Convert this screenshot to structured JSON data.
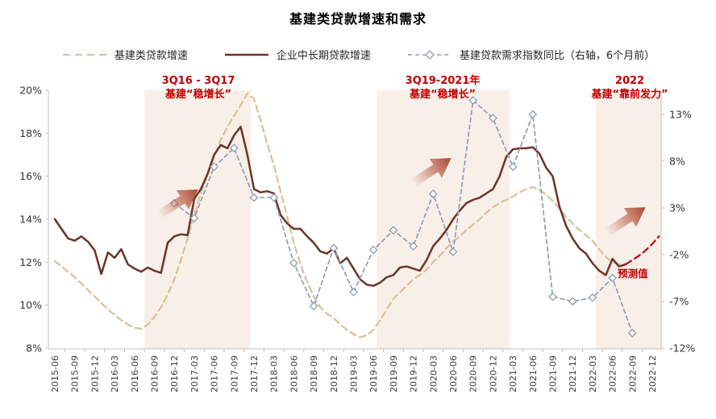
{
  "title": "基建类贷款增速和需求",
  "legend": [
    {
      "label": "基建类贷款增速",
      "style": "dashed",
      "color": "#ddbe94"
    },
    {
      "label": "企业中长期贷款增速",
      "style": "solid",
      "color": "#6d3425"
    },
    {
      "label": "基建贷款需求指数同比（右轴，6个月前）",
      "style": "dashed-diamond",
      "color": "#8e9cb6"
    }
  ],
  "annotations": [
    {
      "line1": "3Q16 - 3Q17",
      "line2": "基建“稳增长”"
    },
    {
      "line1": "3Q19-2021年",
      "line2": "基建“稳增长”"
    },
    {
      "line1": "2022",
      "line2": "基建“靠前发力”"
    }
  ],
  "forecast_label": "预测值",
  "colors": {
    "infra_loan": "#ddbe94",
    "corporate_loan": "#6d3425",
    "demand_index": "#8e9cb6",
    "forecast": "#c00000",
    "annotation": "#c00000",
    "band": "#f9efe9",
    "axis": "#c0c0c0",
    "tick_text": "#333333"
  },
  "chart_data": {
    "type": "line",
    "left_axis": {
      "min": 8,
      "max": 20,
      "step": 2,
      "tick_labels": [
        "20%",
        "18%",
        "16%",
        "14%",
        "12%",
        "10%",
        "8%"
      ]
    },
    "right_axis": {
      "min": -12,
      "max": 13,
      "step": 5,
      "tick_labels": [
        "13%",
        "8%",
        "3%",
        "-2%",
        "-7%",
        "-12%"
      ]
    },
    "x_tick_labels": [
      "2015-06",
      "2015-09",
      "2015-12",
      "2016-03",
      "2016-06",
      "2016-09",
      "2016-12",
      "2017-03",
      "2017-06",
      "2017-09",
      "2017-12",
      "2018-03",
      "2018-06",
      "2018-09",
      "2018-12",
      "2019-03",
      "2019-06",
      "2019-09",
      "2019-12",
      "2020-03",
      "2020-06",
      "2020-09",
      "2020-12",
      "2021-03",
      "2021-06",
      "2021-09",
      "2021-12",
      "2022-03",
      "2022-06",
      "2022-09",
      "2022-12"
    ],
    "bands": [
      {
        "from": "2016-08",
        "to": "2017-11",
        "label": "3Q16-3Q17 基建稳增长"
      },
      {
        "from": "2019-07",
        "to": "2021-02",
        "label": "3Q19-2021 基建稳增长"
      },
      {
        "from": "2022-04",
        "to": "end",
        "label": "2022 基建靠前发力"
      }
    ],
    "series": [
      {
        "name": "基建类贷款增速",
        "axis": "left",
        "style": "dashed",
        "color": "#ddbe94",
        "start": "2015-06",
        "step_months": 1,
        "values": [
          12.05,
          11.8,
          11.55,
          11.3,
          11.0,
          10.7,
          10.4,
          10.1,
          9.8,
          9.55,
          9.3,
          9.1,
          8.95,
          8.9,
          9.1,
          9.45,
          9.9,
          10.5,
          11.2,
          12.1,
          13.1,
          14.2,
          15.2,
          16.1,
          16.9,
          17.7,
          18.3,
          18.8,
          19.3,
          19.85,
          19.6,
          18.6,
          17.5,
          16.5,
          15.3,
          14.1,
          12.9,
          11.9,
          11.1,
          10.4,
          9.9,
          9.6,
          9.4,
          9.1,
          8.85,
          8.65,
          8.5,
          8.6,
          8.85,
          9.3,
          9.8,
          10.3,
          10.6,
          10.9,
          11.2,
          11.4,
          11.65,
          12.0,
          12.3,
          12.65,
          12.95,
          13.2,
          13.5,
          13.75,
          14.0,
          14.3,
          14.55,
          14.75,
          14.9,
          15.05,
          15.25,
          15.4,
          15.5,
          15.35,
          15.15,
          14.85,
          14.5,
          14.1,
          13.8,
          13.5,
          13.25,
          13.0,
          12.6,
          12.25,
          12.0,
          11.9
        ]
      },
      {
        "name": "企业中长期贷款增速",
        "axis": "left",
        "style": "solid",
        "color": "#6d3425",
        "start": "2015-06",
        "step_months": 1,
        "values": [
          14.0,
          13.55,
          13.1,
          13.0,
          13.2,
          12.95,
          12.55,
          11.45,
          12.45,
          12.2,
          12.6,
          11.9,
          11.7,
          11.55,
          11.75,
          11.6,
          11.5,
          12.9,
          13.2,
          13.3,
          13.25,
          14.95,
          15.4,
          16.1,
          17.0,
          17.45,
          17.3,
          17.9,
          18.3,
          17.0,
          15.4,
          15.25,
          15.3,
          15.2,
          14.2,
          13.8,
          13.55,
          13.55,
          13.2,
          12.9,
          12.5,
          12.4,
          12.65,
          11.95,
          12.2,
          11.7,
          11.2,
          10.95,
          10.9,
          11.05,
          11.3,
          11.4,
          11.75,
          11.8,
          11.7,
          11.6,
          12.1,
          12.75,
          13.1,
          13.5,
          14.0,
          14.4,
          14.75,
          14.9,
          15.0,
          15.2,
          15.4,
          16.0,
          16.9,
          17.25,
          17.3,
          17.3,
          17.35,
          17.05,
          16.4,
          16.0,
          14.6,
          13.7,
          13.1,
          12.65,
          12.4,
          11.95,
          11.6,
          11.4,
          12.15,
          11.8,
          11.9
        ]
      },
      {
        "name": "企业中长期贷款增速（预测值）",
        "axis": "left",
        "style": "dashed",
        "color": "#c00000",
        "start": "2022-08",
        "step_months": 1,
        "values": [
          11.9,
          12.1,
          12.3,
          12.55,
          12.85,
          13.2
        ]
      },
      {
        "name": "基建贷款需求指数同比（右轴，6个月前）",
        "axis": "right",
        "style": "dashed-diamond",
        "color": "#8e9cb6",
        "start": "2016-12",
        "step_months": 3,
        "values": [
          3.5,
          1.9,
          7.4,
          9.4,
          4.1,
          4.1,
          -2.9,
          -7.5,
          -1.3,
          -6.0,
          -1.5,
          0.6,
          -1.1,
          4.5,
          -1.7,
          14.5,
          12.6,
          7.4,
          13.0,
          -6.5,
          -7.0,
          -6.6,
          -4.5,
          -10.4
        ]
      }
    ]
  }
}
